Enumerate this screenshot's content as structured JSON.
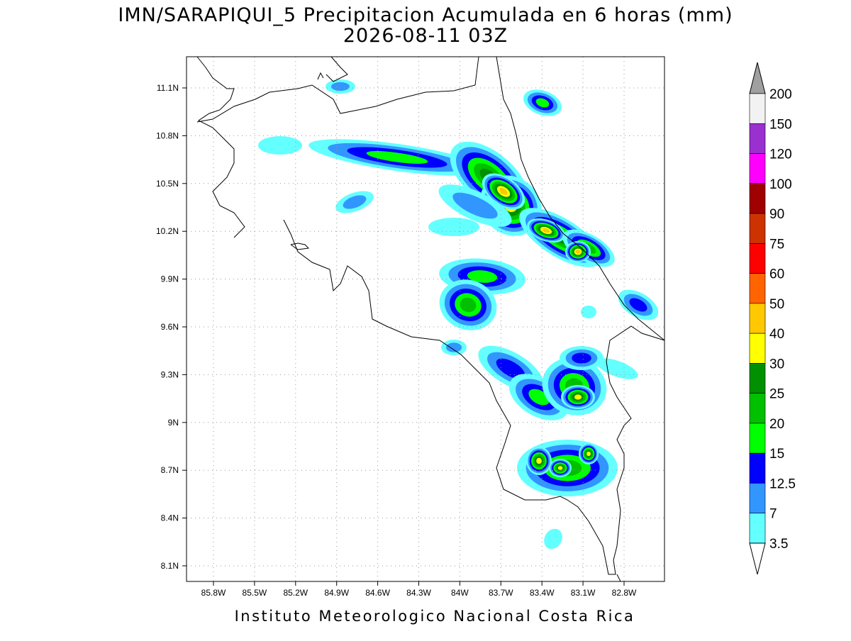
{
  "title": {
    "line1": "IMN/SARAPIQUI_5 Precipitacion Acumulada en 6 horas (mm)",
    "line2": "2026-08-11 03Z"
  },
  "map": {
    "lon_ticks": [
      "85.8W",
      "85.5W",
      "85.2W",
      "84.9W",
      "84.6W",
      "84.3W",
      "84W",
      "83.7W",
      "83.4W",
      "83.1W",
      "82.8W"
    ],
    "lat_ticks": [
      "11.1N",
      "10.8N",
      "10.5N",
      "10.2N",
      "9.9N",
      "9.6N",
      "9.3N",
      "9N",
      "8.7N",
      "8.4N",
      "8.1N"
    ]
  },
  "colorbar": {
    "labels": [
      "200",
      "150",
      "120",
      "100",
      "90",
      "75",
      "60",
      "50",
      "40",
      "30",
      "25",
      "20",
      "15",
      "12.5",
      "7",
      "3.5"
    ],
    "colors": [
      "#f2f2f2",
      "#9b30d0",
      "#ff00ff",
      "#a00000",
      "#cc3300",
      "#ff0000",
      "#ff6400",
      "#ffc800",
      "#ffff00",
      "#009000",
      "#00c000",
      "#00ff00",
      "#0000ff",
      "#3296ff",
      "#64ffff"
    ],
    "top_color": "#a0a0a0",
    "bottom_color": "#ffffff"
  },
  "footer": "Instituto Meteorologico Nacional Costa Rica"
}
